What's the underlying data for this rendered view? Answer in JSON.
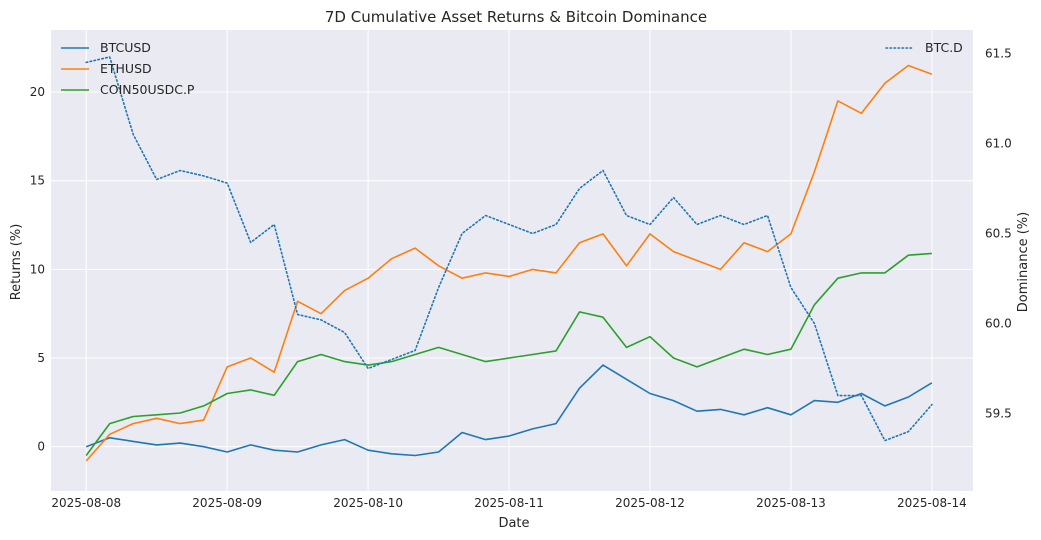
{
  "chart_data": {
    "type": "line",
    "title": "7D Cumulative Asset Returns & Bitcoin Dominance",
    "xlabel": "Date",
    "ylabel": "Returns (%)",
    "y2label": "Dominance (%)",
    "x_ticks": [
      "2025-08-08",
      "2025-08-09",
      "2025-08-10",
      "2025-08-11",
      "2025-08-12",
      "2025-08-13",
      "2025-08-14"
    ],
    "xlim": [
      "2025-08-07 18:00",
      "2025-08-14 07:00"
    ],
    "ylim": [
      -2.5,
      23.5
    ],
    "y_ticks": [
      0,
      5,
      10,
      15,
      20
    ],
    "y2lim": [
      59.07,
      61.63
    ],
    "y2_ticks": [
      59.5,
      60.0,
      60.5,
      61.0,
      61.5
    ],
    "grid": true,
    "legend_left_placement": "top-left",
    "legend_right_placement": "top-right",
    "x_dates": [
      "2025-08-08 00:00",
      "2025-08-08 04:00",
      "2025-08-08 08:00",
      "2025-08-08 12:00",
      "2025-08-08 16:00",
      "2025-08-08 20:00",
      "2025-08-09 00:00",
      "2025-08-09 04:00",
      "2025-08-09 08:00",
      "2025-08-09 12:00",
      "2025-08-09 16:00",
      "2025-08-09 20:00",
      "2025-08-10 00:00",
      "2025-08-10 04:00",
      "2025-08-10 08:00",
      "2025-08-10 12:00",
      "2025-08-10 16:00",
      "2025-08-10 20:00",
      "2025-08-11 00:00",
      "2025-08-11 04:00",
      "2025-08-11 08:00",
      "2025-08-11 12:00",
      "2025-08-11 16:00",
      "2025-08-11 20:00",
      "2025-08-12 00:00",
      "2025-08-12 04:00",
      "2025-08-12 08:00",
      "2025-08-12 12:00",
      "2025-08-12 16:00",
      "2025-08-12 20:00",
      "2025-08-13 00:00",
      "2025-08-13 04:00",
      "2025-08-13 08:00",
      "2025-08-13 12:00",
      "2025-08-13 16:00",
      "2025-08-13 20:00",
      "2025-08-14 00:00"
    ],
    "series": [
      {
        "name": "BTCUSD",
        "axis": "left",
        "color": "#1f77b4",
        "style": "solid",
        "values": [
          0.0,
          0.5,
          0.3,
          0.1,
          0.2,
          0.0,
          -0.3,
          0.1,
          -0.2,
          -0.3,
          0.1,
          0.4,
          -0.2,
          -0.4,
          -0.5,
          -0.3,
          0.8,
          0.4,
          0.6,
          1.0,
          1.3,
          3.3,
          4.6,
          3.8,
          3.0,
          2.6,
          2.0,
          2.1,
          1.8,
          2.2,
          1.8,
          2.6,
          2.5,
          3.0,
          2.3,
          2.8,
          3.6
        ]
      },
      {
        "name": "ETHUSD",
        "axis": "left",
        "color": "#ff7f0e",
        "style": "solid",
        "values": [
          -0.8,
          0.7,
          1.3,
          1.6,
          1.3,
          1.5,
          4.5,
          5.0,
          4.2,
          8.2,
          7.5,
          8.8,
          9.5,
          10.6,
          11.2,
          10.2,
          9.5,
          9.8,
          9.6,
          10.0,
          9.8,
          11.5,
          12.0,
          10.2,
          12.0,
          11.0,
          10.5,
          10.0,
          11.5,
          11.0,
          12.0,
          15.5,
          19.5,
          18.8,
          20.5,
          21.5,
          21.0
        ]
      },
      {
        "name": "COIN50USDC.P",
        "axis": "left",
        "color": "#2ca02c",
        "style": "solid",
        "values": [
          -0.5,
          1.3,
          1.7,
          1.8,
          1.9,
          2.3,
          3.0,
          3.2,
          2.9,
          4.8,
          5.2,
          4.8,
          4.6,
          4.8,
          5.2,
          5.6,
          5.2,
          4.8,
          5.0,
          5.2,
          5.4,
          7.6,
          7.3,
          5.6,
          6.2,
          5.0,
          4.5,
          5.0,
          5.5,
          5.2,
          5.5,
          8.0,
          9.5,
          9.8,
          9.8,
          10.8,
          10.9
        ]
      },
      {
        "name": "BTC.D",
        "axis": "right",
        "color": "#1f77b4",
        "style": "dotted",
        "values": [
          61.45,
          61.48,
          61.05,
          60.8,
          60.85,
          60.82,
          60.78,
          60.45,
          60.55,
          60.05,
          60.02,
          59.95,
          59.75,
          59.8,
          59.85,
          60.2,
          60.5,
          60.6,
          60.55,
          60.5,
          60.55,
          60.75,
          60.85,
          60.6,
          60.55,
          60.7,
          60.55,
          60.6,
          60.55,
          60.6,
          60.2,
          60.0,
          59.6,
          59.6,
          59.35,
          59.4,
          59.55
        ]
      }
    ]
  }
}
